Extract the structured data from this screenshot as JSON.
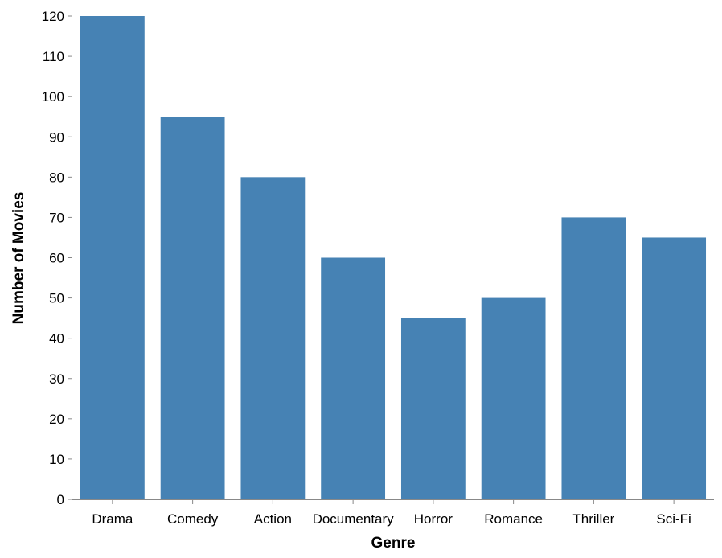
{
  "colors": {
    "bar": "#4682b4",
    "axis": "#888888",
    "text": "#000000"
  },
  "chart_data": {
    "type": "bar",
    "title": "",
    "xlabel": "Genre",
    "ylabel": "Number of Movies",
    "categories": [
      "Drama",
      "Comedy",
      "Action",
      "Documentary",
      "Horror",
      "Romance",
      "Thriller",
      "Sci-Fi"
    ],
    "values": [
      120,
      95,
      80,
      60,
      45,
      50,
      70,
      65
    ],
    "ylim": [
      0,
      120
    ],
    "yticks": [
      0,
      10,
      20,
      30,
      40,
      50,
      60,
      70,
      80,
      90,
      100,
      110,
      120
    ],
    "grid": false,
    "legend": "none"
  }
}
